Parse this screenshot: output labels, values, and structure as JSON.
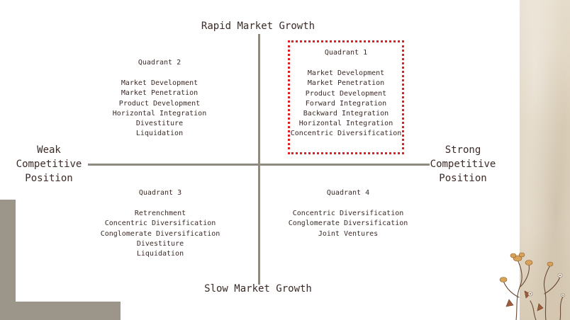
{
  "axes": {
    "top": "Rapid Market Growth",
    "bottom": "Slow Market Growth",
    "left": [
      "Weak",
      "Competitive",
      "Position"
    ],
    "right": [
      "Strong",
      "Competitive",
      "Position"
    ]
  },
  "quadrants": {
    "q1": {
      "title": "Quadrant 1",
      "items": [
        "Market Development",
        "Market Penetration",
        "Product Development",
        "Forward Integration",
        "Backward Integration",
        "Horizontal Integration",
        "Concentric Diversification"
      ]
    },
    "q2": {
      "title": "Quadrant 2",
      "items": [
        "Market Development",
        "Market Penetration",
        "Product Development",
        "Horizontal Integration",
        "Divestiture",
        "Liquidation"
      ]
    },
    "q3": {
      "title": "Quadrant 3",
      "items": [
        "Retrenchment",
        "Concentric Diversification",
        "Conglomerate Diversification",
        "Divestiture",
        "Liquidation"
      ]
    },
    "q4": {
      "title": "Quadrant 4",
      "items": [
        "Concentric Diversification",
        "Conglomerate Diversification",
        "Joint Ventures"
      ]
    }
  },
  "colors": {
    "text": "#3b2a26",
    "axis": "#8f8b80",
    "highlight": "#e02020",
    "frame": "#9b958a"
  },
  "icons": [
    "flower-sketch-icon"
  ]
}
